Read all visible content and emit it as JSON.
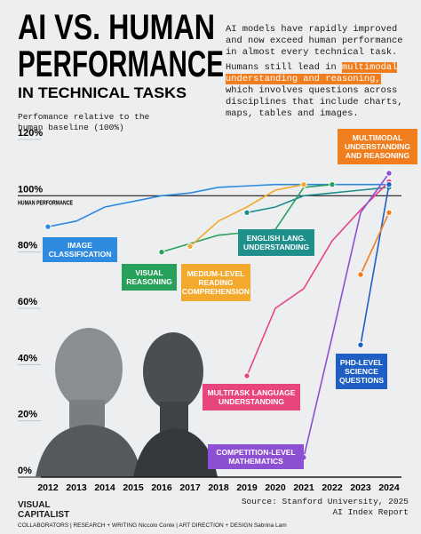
{
  "chart_data": {
    "type": "line",
    "title_lines": [
      "AI VS. HUMAN",
      "PERFORMANCE"
    ],
    "subtitle": "IN TECHNICAL TASKS",
    "intro": "AI models have rapidly improved and now exceed human performance in almost every technical task.",
    "note_before": "Humans still lead in",
    "note_highlight": "multimodal understanding and reasoning,",
    "note_after": "which involves questions across disciplines that include charts, maps, tables and images.",
    "y_label": "Perfomance relative to the human baseline (100%)",
    "reference": {
      "value": 100,
      "label": "100%",
      "text": "HUMAN PERFORMANCE"
    },
    "x": [
      2012,
      2013,
      2014,
      2015,
      2016,
      2017,
      2018,
      2019,
      2020,
      2021,
      2022,
      2023,
      2024
    ],
    "xlim": [
      2012,
      2024
    ],
    "xticks": [
      2012,
      2013,
      2014,
      2015,
      2016,
      2017,
      2018,
      2019,
      2020,
      2021,
      2022,
      2023,
      2024
    ],
    "ylim": [
      0,
      120
    ],
    "yticks": [
      {
        "value": 0,
        "label": "0%"
      },
      {
        "value": 20,
        "label": "20%"
      },
      {
        "value": 40,
        "label": "40%"
      },
      {
        "value": 60,
        "label": "60%"
      },
      {
        "value": 80,
        "label": "80%"
      },
      {
        "value": 100,
        "label": "100%"
      },
      {
        "value": 120,
        "label": "120%"
      }
    ],
    "grid": false,
    "series": [
      {
        "name": "IMAGE CLASSIFICATION",
        "color": "#2f8be0",
        "values": [
          89,
          91,
          96,
          98,
          100,
          101,
          103,
          103.5,
          104,
          104,
          104,
          104,
          104
        ]
      },
      {
        "name": "VISUAL REASONING",
        "color": "#27a05a",
        "values": [
          null,
          null,
          null,
          null,
          80,
          83,
          86,
          87,
          88,
          103,
          104,
          null,
          null
        ]
      },
      {
        "name": "MEDIUM-LEVEL READING COMPREHENSION",
        "color": "#f2a92e",
        "values": [
          null,
          null,
          null,
          null,
          null,
          82,
          91,
          96,
          102,
          104,
          null,
          null,
          null
        ]
      },
      {
        "name": "ENGLISH LANG. UNDERSTANDING",
        "color": "#1f8f8c",
        "values": [
          null,
          null,
          null,
          null,
          null,
          null,
          null,
          94,
          96,
          100,
          101,
          102,
          103
        ]
      },
      {
        "name": "MULTITASK LANGUAGE UNDERSTANDING",
        "color": "#e8457f",
        "values": [
          null,
          null,
          null,
          null,
          null,
          null,
          null,
          36,
          60,
          67,
          84,
          95,
          105
        ]
      },
      {
        "name": "COMPETITION-LEVEL MATHEMATICS",
        "color": "#8d4fd4",
        "values": [
          null,
          null,
          null,
          null,
          null,
          null,
          null,
          null,
          null,
          7,
          50,
          94,
          108
        ]
      },
      {
        "name": "PHD-LEVEL SCIENCE QUESTIONS",
        "color": "#1f5fc4",
        "values": [
          null,
          null,
          null,
          null,
          null,
          null,
          null,
          null,
          null,
          null,
          null,
          47,
          104
        ]
      },
      {
        "name": "MULTIMODAL UNDERSTANDING AND REASONING",
        "color": "#f07d1e",
        "values": [
          null,
          null,
          null,
          null,
          null,
          null,
          null,
          null,
          null,
          null,
          null,
          72,
          94
        ]
      }
    ],
    "source": "Source: Stanford University, 2025 AI Index Report",
    "brand": "VISUAL CAPITALIST",
    "credits": "COLLABORATORS | RESEARCH + WRITING Niccolo Conte | ART DIRECTION + DESIGN Sabrina Lam"
  }
}
